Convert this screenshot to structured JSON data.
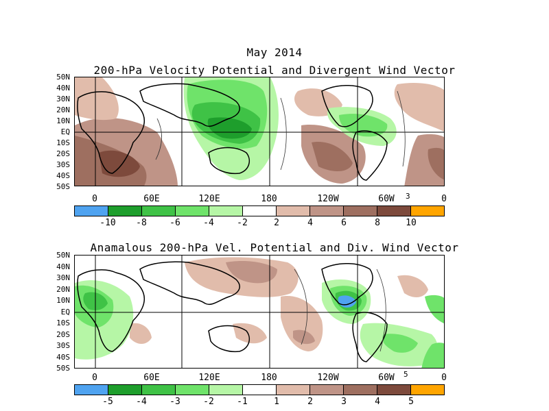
{
  "figure": {
    "title": "May 2014",
    "panel1_title": "200-hPa Velocity Potential and Divergent Wind Vector",
    "panel2_title": "Anamalous 200-hPa Vel. Potential and Div. Wind Vector"
  },
  "latitudes": [
    "50N",
    "40N",
    "30N",
    "20N",
    "10N",
    "EQ",
    "10S",
    "20S",
    "30S",
    "40S",
    "50S"
  ],
  "longitudes": [
    "0",
    "60E",
    "120E",
    "180",
    "120W",
    "60W",
    "0"
  ],
  "panel1": {
    "ref_vector": "3",
    "colorbar_labels": [
      "-10",
      "-8",
      "-6",
      "-4",
      "-2",
      "2",
      "4",
      "6",
      "8",
      "10"
    ]
  },
  "panel2": {
    "ref_vector": "5",
    "colorbar_labels": [
      "-5",
      "-4",
      "-3",
      "-2",
      "-1",
      "1",
      "2",
      "3",
      "4",
      "5"
    ]
  },
  "colors": {
    "neg_extreme": "#4fa3f0",
    "neg_strong": "#1e9e2c",
    "neg_mod": "#3fc246",
    "neg_weak": "#6fe36a",
    "neg_slight": "#b6f6a6",
    "neutral": "#ffffff",
    "pos_slight": "#e1bcab",
    "pos_weak": "#bf9487",
    "pos_mod": "#9e6f60",
    "pos_strong": "#7d4a3c",
    "pos_extreme": "#ffa500"
  }
}
